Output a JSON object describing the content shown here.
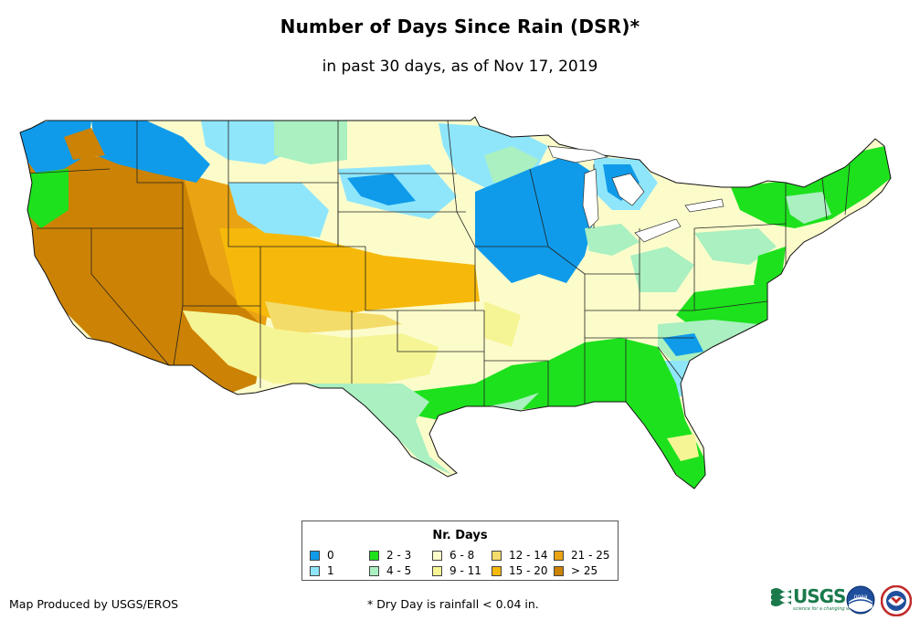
{
  "title": "Number of Days Since Rain (DSR)*",
  "subtitle": "in past 30 days, as of Nov 17, 2019",
  "legend": {
    "title": "Nr. Days",
    "items": [
      {
        "label": "0",
        "color": "#0f9bea"
      },
      {
        "label": "1",
        "color": "#8fe6fb"
      },
      {
        "label": "2 - 3",
        "color": "#1de11d"
      },
      {
        "label": "4 - 5",
        "color": "#aaf0c0"
      },
      {
        "label": "6 - 8",
        "color": "#fcfccb"
      },
      {
        "label": "9 - 11",
        "color": "#f6f595"
      },
      {
        "label": "12 - 14",
        "color": "#f4dc6a"
      },
      {
        "label": "15 - 20",
        "color": "#f6b80a"
      },
      {
        "label": "21 - 25",
        "color": "#eaa313"
      },
      {
        "label": "> 25",
        "color": "#cc8204"
      }
    ]
  },
  "footer": {
    "credit": "Map Produced by USGS/EROS",
    "note": "* Dry Day is rainfall < 0.04 in."
  },
  "logos": {
    "usgs": "USGS",
    "usgs_tagline": "science for a changing world",
    "noaa": "noaa"
  }
}
